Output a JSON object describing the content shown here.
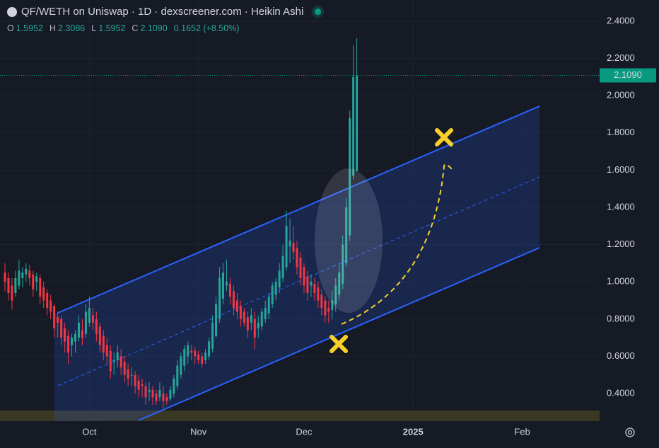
{
  "header": {
    "title": "QF/WETH on Uniswap · 1D · dexscreener.com · Heikin Ashi"
  },
  "legend": {
    "o_label": "O",
    "o": "1.5952",
    "h_label": "H",
    "h": "2.3086",
    "l_label": "L",
    "l": "1.5952",
    "c_label": "C",
    "c": "2.1090",
    "change": "0.1652 (+8.50%)"
  },
  "chart_data": {
    "type": "candlestick",
    "up_color": "#26a69a",
    "down_color": "#f23645",
    "ylim": [
      0.252,
      2.514
    ],
    "yticks": [
      {
        "value": 0.4,
        "label": "0.4000"
      },
      {
        "value": 0.6,
        "label": "0.6000"
      },
      {
        "value": 0.8,
        "label": "0.8000"
      },
      {
        "value": 1.0,
        "label": "1.0000"
      },
      {
        "value": 1.2,
        "label": "1.2000"
      },
      {
        "value": 1.4,
        "label": "1.4000"
      },
      {
        "value": 1.6,
        "label": "1.6000"
      },
      {
        "value": 1.8,
        "label": "1.8000"
      },
      {
        "value": 2.0,
        "label": "2.0000"
      },
      {
        "value": 2.2,
        "label": "2.2000"
      },
      {
        "value": 2.4,
        "label": "2.4000"
      }
    ],
    "xlim": [
      -1.4,
      169
    ],
    "xticks": [
      {
        "value": 24,
        "label": "Oct"
      },
      {
        "value": 55,
        "label": "Nov"
      },
      {
        "value": 85,
        "label": "Dec"
      },
      {
        "value": 116,
        "label": "2025"
      },
      {
        "value": 147,
        "label": "Feb"
      }
    ],
    "last_price": {
      "value": 2.109,
      "label": "2.1090"
    },
    "grid": true,
    "ohlc": [
      [
        1.05,
        1.1,
        0.95,
        1.0
      ],
      [
        1.02,
        1.05,
        0.9,
        0.94
      ],
      [
        0.98,
        1.02,
        0.85,
        0.9
      ],
      [
        0.94,
        1.06,
        0.92,
        1.02
      ],
      [
        0.98,
        1.12,
        0.96,
        1.06
      ],
      [
        1.02,
        1.08,
        0.97,
        1.05
      ],
      [
        1.04,
        1.1,
        1.0,
        1.07
      ],
      [
        1.06,
        1.09,
        0.98,
        1.02
      ],
      [
        1.04,
        1.06,
        0.92,
        0.96
      ],
      [
        1.0,
        1.05,
        0.95,
        1.03
      ],
      [
        1.02,
        1.04,
        0.88,
        0.92
      ],
      [
        0.97,
        1.0,
        0.86,
        0.9
      ],
      [
        0.94,
        0.96,
        0.82,
        0.86
      ],
      [
        0.9,
        0.93,
        0.8,
        0.84
      ],
      [
        0.87,
        0.88,
        0.7,
        0.75
      ],
      [
        0.81,
        0.84,
        0.7,
        0.78
      ],
      [
        0.8,
        0.82,
        0.66,
        0.7
      ],
      [
        0.75,
        0.78,
        0.62,
        0.68
      ],
      [
        0.71,
        0.74,
        0.56,
        0.62
      ],
      [
        0.66,
        0.72,
        0.6,
        0.7
      ],
      [
        0.68,
        0.74,
        0.62,
        0.72
      ],
      [
        0.7,
        0.82,
        0.68,
        0.78
      ],
      [
        0.74,
        0.8,
        0.66,
        0.7
      ],
      [
        0.72,
        0.88,
        0.7,
        0.84
      ],
      [
        0.78,
        0.92,
        0.76,
        0.86
      ],
      [
        0.82,
        0.86,
        0.74,
        0.78
      ],
      [
        0.8,
        0.84,
        0.68,
        0.72
      ],
      [
        0.76,
        0.78,
        0.62,
        0.66
      ],
      [
        0.71,
        0.74,
        0.58,
        0.62
      ],
      [
        0.66,
        0.7,
        0.56,
        0.6
      ],
      [
        0.63,
        0.66,
        0.48,
        0.52
      ],
      [
        0.57,
        0.62,
        0.5,
        0.58
      ],
      [
        0.58,
        0.66,
        0.54,
        0.62
      ],
      [
        0.6,
        0.64,
        0.5,
        0.54
      ],
      [
        0.57,
        0.6,
        0.46,
        0.5
      ],
      [
        0.53,
        0.56,
        0.44,
        0.48
      ],
      [
        0.5,
        0.54,
        0.44,
        0.5
      ],
      [
        0.5,
        0.52,
        0.4,
        0.44
      ],
      [
        0.47,
        0.5,
        0.38,
        0.42
      ],
      [
        0.45,
        0.48,
        0.38,
        0.44
      ],
      [
        0.44,
        0.46,
        0.34,
        0.38
      ],
      [
        0.41,
        0.46,
        0.36,
        0.42
      ],
      [
        0.42,
        0.44,
        0.34,
        0.38
      ],
      [
        0.4,
        0.42,
        0.34,
        0.36
      ],
      [
        0.38,
        0.46,
        0.36,
        0.42
      ],
      [
        0.4,
        0.44,
        0.32,
        0.36
      ],
      [
        0.38,
        0.4,
        0.34,
        0.36
      ],
      [
        0.37,
        0.44,
        0.36,
        0.42
      ],
      [
        0.4,
        0.5,
        0.38,
        0.48
      ],
      [
        0.44,
        0.58,
        0.42,
        0.55
      ],
      [
        0.5,
        0.62,
        0.48,
        0.6
      ],
      [
        0.55,
        0.66,
        0.52,
        0.64
      ],
      [
        0.6,
        0.68,
        0.56,
        0.66
      ],
      [
        0.63,
        0.66,
        0.58,
        0.62
      ],
      [
        0.63,
        0.65,
        0.56,
        0.6
      ],
      [
        0.61,
        0.63,
        0.56,
        0.58
      ],
      [
        0.6,
        0.62,
        0.54,
        0.56
      ],
      [
        0.58,
        0.64,
        0.56,
        0.62
      ],
      [
        0.6,
        0.7,
        0.58,
        0.68
      ],
      [
        0.64,
        0.82,
        0.62,
        0.78
      ],
      [
        0.71,
        0.92,
        0.7,
        0.88
      ],
      [
        0.8,
        1.08,
        0.78,
        1.02
      ],
      [
        0.91,
        1.1,
        0.88,
        1.05
      ],
      [
        0.98,
        1.12,
        0.95,
        1.0
      ],
      [
        0.99,
        1.02,
        0.88,
        0.92
      ],
      [
        0.95,
        0.98,
        0.82,
        0.86
      ],
      [
        0.9,
        0.94,
        0.8,
        0.84
      ],
      [
        0.87,
        0.9,
        0.76,
        0.8
      ],
      [
        0.84,
        0.86,
        0.76,
        0.78
      ],
      [
        0.81,
        0.84,
        0.7,
        0.74
      ],
      [
        0.78,
        0.86,
        0.74,
        0.82
      ],
      [
        0.8,
        0.84,
        0.64,
        0.7
      ],
      [
        0.75,
        0.82,
        0.7,
        0.78
      ],
      [
        0.76,
        0.86,
        0.74,
        0.84
      ],
      [
        0.8,
        0.9,
        0.78,
        0.86
      ],
      [
        0.83,
        0.94,
        0.8,
        0.92
      ],
      [
        0.88,
        1.0,
        0.86,
        0.98
      ],
      [
        0.93,
        1.02,
        0.9,
        1.0
      ],
      [
        0.97,
        1.1,
        0.94,
        1.06
      ],
      [
        1.02,
        1.2,
        1.0,
        1.14
      ],
      [
        1.08,
        1.38,
        1.06,
        1.3
      ],
      [
        1.19,
        1.34,
        1.1,
        1.22
      ],
      [
        1.21,
        1.3,
        1.12,
        1.16
      ],
      [
        1.18,
        1.22,
        1.04,
        1.08
      ],
      [
        1.13,
        1.16,
        0.98,
        1.02
      ],
      [
        1.08,
        1.1,
        0.94,
        0.98
      ],
      [
        1.03,
        1.06,
        0.9,
        0.94
      ],
      [
        0.98,
        1.04,
        0.92,
        1.0
      ],
      [
        0.99,
        1.02,
        0.9,
        0.94
      ],
      [
        0.97,
        1.0,
        0.86,
        0.9
      ],
      [
        0.93,
        0.96,
        0.82,
        0.86
      ],
      [
        0.9,
        0.92,
        0.78,
        0.82
      ],
      [
        0.86,
        0.9,
        0.78,
        0.84
      ],
      [
        0.85,
        0.95,
        0.8,
        0.9
      ],
      [
        0.88,
        1.02,
        0.84,
        0.98
      ],
      [
        0.93,
        1.1,
        0.9,
        1.05
      ],
      [
        0.99,
        1.25,
        0.96,
        1.2
      ],
      [
        1.1,
        1.45,
        1.08,
        1.4
      ],
      [
        1.25,
        1.92,
        1.22,
        1.88
      ],
      [
        1.57,
        2.27,
        1.55,
        2.1
      ],
      [
        1.5952,
        2.3086,
        1.5952,
        2.109
      ]
    ]
  }
}
